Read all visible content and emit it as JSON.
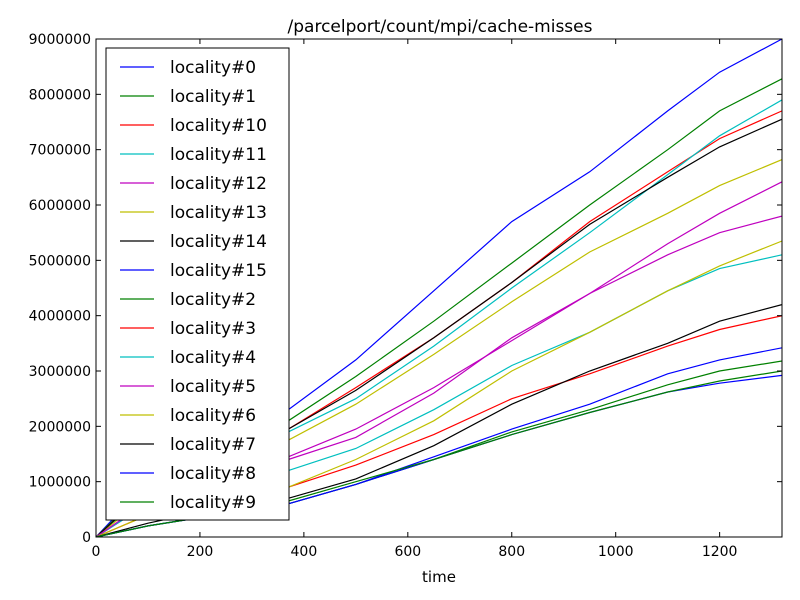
{
  "chart_data": {
    "type": "line",
    "title": "/parcelport/count/mpi/cache-misses",
    "xlabel": "time",
    "ylabel": "",
    "xlim": [
      0,
      1320
    ],
    "ylim": [
      0,
      9000000
    ],
    "xticks": [
      0,
      200,
      400,
      600,
      800,
      1000,
      1200
    ],
    "yticks": [
      0,
      1000000,
      2000000,
      3000000,
      4000000,
      5000000,
      6000000,
      7000000,
      8000000,
      9000000
    ],
    "xtick_labels": [
      "0",
      "200",
      "400",
      "600",
      "800",
      "1000",
      "1200"
    ],
    "ytick_labels": [
      "0",
      "1000000",
      "2000000",
      "3000000",
      "4000000",
      "5000000",
      "6000000",
      "7000000",
      "8000000",
      "9000000"
    ],
    "grid": false,
    "legend_position": "upper-left",
    "series": [
      {
        "name": "locality#0",
        "color": "#0000ff",
        "x": [
          0,
          100,
          200,
          300,
          370,
          500,
          650,
          800,
          950,
          1100,
          1200,
          1320
        ],
        "values": [
          0,
          1000000,
          1600000,
          2000000,
          2300000,
          3200000,
          4450000,
          5700000,
          6600000,
          7700000,
          8400000,
          9000000
        ]
      },
      {
        "name": "locality#1",
        "color": "#008000",
        "x": [
          0,
          100,
          200,
          300,
          370,
          500,
          650,
          800,
          950,
          1100,
          1200,
          1320
        ],
        "values": [
          0,
          900000,
          1500000,
          1850000,
          2100000,
          2900000,
          3900000,
          4950000,
          6000000,
          7000000,
          7700000,
          8280000
        ]
      },
      {
        "name": "locality#10",
        "color": "#ff0000",
        "x": [
          0,
          100,
          200,
          300,
          370,
          500,
          650,
          800,
          950,
          1100,
          1200,
          1320
        ],
        "values": [
          0,
          850000,
          1350000,
          1700000,
          1950000,
          2700000,
          3600000,
          4600000,
          5700000,
          6600000,
          7200000,
          7700000
        ]
      },
      {
        "name": "locality#11",
        "color": "#00bfbf",
        "x": [
          0,
          100,
          200,
          300,
          370,
          500,
          650,
          800,
          950,
          1100,
          1200,
          1320
        ],
        "values": [
          0,
          800000,
          1300000,
          1650000,
          1900000,
          2500000,
          3450000,
          4500000,
          5500000,
          6550000,
          7250000,
          7900000
        ]
      },
      {
        "name": "locality#12",
        "color": "#bf00bf",
        "x": [
          0,
          100,
          200,
          300,
          370,
          500,
          650,
          800,
          950,
          1100,
          1200,
          1320
        ],
        "values": [
          0,
          600000,
          1000000,
          1300000,
          1450000,
          1950000,
          2700000,
          3550000,
          4400000,
          5300000,
          5850000,
          6420000
        ]
      },
      {
        "name": "locality#13",
        "color": "#bfbf00",
        "x": [
          0,
          100,
          200,
          300,
          370,
          500,
          650,
          800,
          950,
          1100,
          1200,
          1320
        ],
        "values": [
          0,
          750000,
          1200000,
          1550000,
          1750000,
          2400000,
          3300000,
          4250000,
          5150000,
          5850000,
          6350000,
          6820000
        ]
      },
      {
        "name": "locality#14",
        "color": "#000000",
        "x": [
          0,
          100,
          200,
          300,
          370,
          500,
          650,
          800,
          950,
          1100,
          1200,
          1320
        ],
        "values": [
          0,
          850000,
          1350000,
          1700000,
          1950000,
          2650000,
          3600000,
          4600000,
          5650000,
          6500000,
          7050000,
          7550000
        ]
      },
      {
        "name": "locality#15",
        "color": "#0000ff",
        "x": [
          0,
          100,
          200,
          300,
          370,
          500,
          650,
          800,
          950,
          1100,
          1200,
          1320
        ],
        "values": [
          0,
          200000,
          350000,
          500000,
          600000,
          950000,
          1450000,
          1950000,
          2400000,
          2950000,
          3200000,
          3420000
        ]
      },
      {
        "name": "locality#2",
        "color": "#008000",
        "x": [
          0,
          100,
          200,
          300,
          370,
          500,
          650,
          800,
          950,
          1100,
          1200,
          1320
        ],
        "values": [
          0,
          200000,
          350000,
          500000,
          600000,
          950000,
          1400000,
          1900000,
          2300000,
          2750000,
          3000000,
          3180000
        ]
      },
      {
        "name": "locality#3",
        "color": "#ff0000",
        "x": [
          0,
          100,
          200,
          300,
          370,
          500,
          650,
          800,
          950,
          1100,
          1200,
          1320
        ],
        "values": [
          0,
          400000,
          650000,
          800000,
          900000,
          1300000,
          1850000,
          2500000,
          2950000,
          3450000,
          3750000,
          4000000
        ]
      },
      {
        "name": "locality#4",
        "color": "#00bfbf",
        "x": [
          0,
          100,
          200,
          300,
          370,
          500,
          650,
          800,
          950,
          1100,
          1200,
          1320
        ],
        "values": [
          0,
          600000,
          900000,
          1050000,
          1200000,
          1600000,
          2300000,
          3100000,
          3700000,
          4450000,
          4850000,
          5100000
        ]
      },
      {
        "name": "locality#5",
        "color": "#bf00bf",
        "x": [
          0,
          100,
          200,
          300,
          370,
          500,
          650,
          800,
          950,
          1100,
          1200,
          1320
        ],
        "values": [
          0,
          650000,
          1050000,
          1250000,
          1400000,
          1800000,
          2600000,
          3600000,
          4400000,
          5100000,
          5500000,
          5800000
        ]
      },
      {
        "name": "locality#6",
        "color": "#bfbf00",
        "x": [
          0,
          100,
          200,
          300,
          370,
          500,
          650,
          800,
          950,
          1100,
          1200,
          1320
        ],
        "values": [
          0,
          400000,
          650000,
          800000,
          900000,
          1400000,
          2100000,
          3000000,
          3700000,
          4450000,
          4900000,
          5350000
        ]
      },
      {
        "name": "locality#7",
        "color": "#000000",
        "x": [
          0,
          100,
          200,
          300,
          370,
          500,
          650,
          800,
          950,
          1100,
          1200,
          1320
        ],
        "values": [
          0,
          250000,
          450000,
          600000,
          700000,
          1050000,
          1650000,
          2400000,
          3000000,
          3500000,
          3900000,
          4200000
        ]
      },
      {
        "name": "locality#8",
        "color": "#0000ff",
        "x": [
          0,
          100,
          200,
          300,
          370,
          500,
          650,
          800,
          950,
          1100,
          1200,
          1320
        ],
        "values": [
          0,
          200000,
          350000,
          500000,
          600000,
          950000,
          1400000,
          1850000,
          2250000,
          2620000,
          2780000,
          2920000
        ]
      },
      {
        "name": "locality#9",
        "color": "#008000",
        "x": [
          0,
          100,
          200,
          300,
          370,
          500,
          650,
          800,
          950,
          1100,
          1200,
          1320
        ],
        "values": [
          0,
          200000,
          350000,
          500000,
          650000,
          1000000,
          1400000,
          1850000,
          2250000,
          2620000,
          2820000,
          3000000
        ]
      }
    ]
  }
}
